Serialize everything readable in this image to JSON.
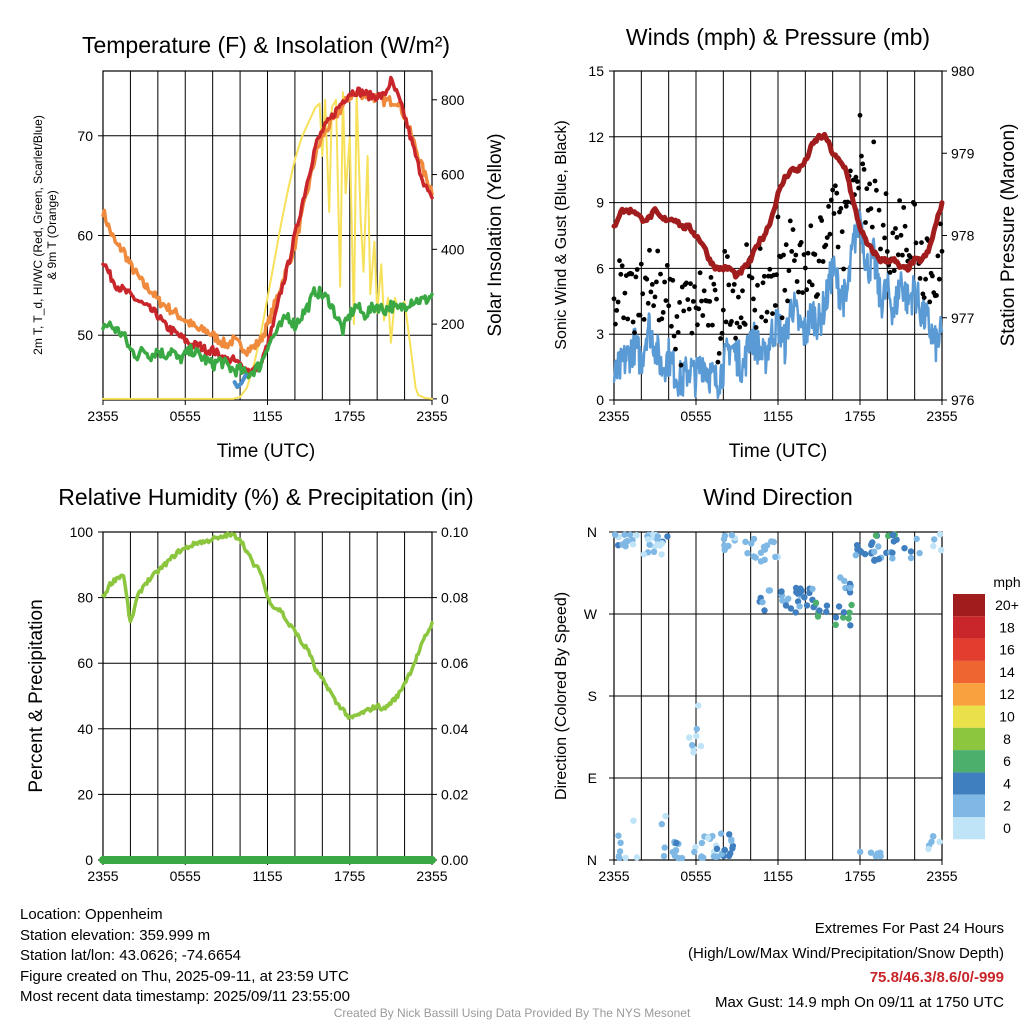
{
  "panels": {
    "temperature": {
      "title": "Temperature (F) & Insolation (W/m²)",
      "ylabel_left_line1": "2m T, T_d, HI/WC (Red, Green, Scarlet/Blue)",
      "ylabel_left_line2": "& 9m T (Orange)",
      "ylabel_right": "Solar Insolation (Yellow)",
      "xlabel": "Time (UTC)"
    },
    "winds": {
      "title": "Winds (mph) & Pressure (mb)",
      "ylabel_left": "Sonic Wind & Gust (Blue, Black)",
      "ylabel_right": "Station Pressure (Maroon)",
      "xlabel": "Time (UTC)"
    },
    "humidity": {
      "title": "Relative Humidity (%) & Precipitation (in)",
      "ylabel_left": "Percent & Precipitation"
    },
    "direction": {
      "title": "Wind Direction",
      "ylabel_left": "Direction (Colored By Speed)",
      "legend_title": "mph"
    }
  },
  "info": {
    "location": "Location: Oppenheim",
    "elevation": "Station elevation: 359.999 m",
    "latlon": "Station lat/lon: 43.0626; -74.6654",
    "created": "Figure created on Thu, 2025-09-11, at 23:59 UTC",
    "recent": "Most recent data timestamp: 2025/09/11 23:55:00"
  },
  "extremes": {
    "heading": "Extremes For Past 24 Hours",
    "legend": "(High/Low/Max Wind/Precipitation/Snow Depth)",
    "values": "75.8/46.3/8.6/0/-999",
    "max_gust": "Max Gust: 14.9 mph On 09/11 at 1750 UTC"
  },
  "credit": "Created By Nick Bassill Using Data Provided By The NYS Mesonet",
  "colors": {
    "temp": "#c8262b",
    "temp9m": "#f08a3c",
    "dewpoint": "#3aa843",
    "windchill": "#4a90cc",
    "solar": "#f7e15a",
    "wind": "#5b9bd5",
    "gust": "#000000",
    "pressure": "#a11d1d",
    "rh": "#8cc63f",
    "precip": "#3aa843"
  },
  "chart_data": [
    {
      "type": "line",
      "panel": "temperature",
      "x_ticks": [
        "2355",
        "0555",
        "1155",
        "1755",
        "2355"
      ],
      "x_hours": [
        0,
        6,
        12,
        18,
        24
      ],
      "y_left_ticks": [
        50,
        60,
        70
      ],
      "ylim_left": [
        43.5,
        76.5
      ],
      "y_right_ticks": [
        0,
        200,
        400,
        600,
        800
      ],
      "ylim_right": [
        -3,
        877
      ],
      "grid": true,
      "series": [
        {
          "key": "temp9m",
          "axis": "left",
          "x": [
            0,
            0.5,
            1,
            1.5,
            2,
            2.5,
            3,
            3.5,
            4,
            4.5,
            5,
            5.5,
            6,
            6.5,
            7,
            7.5,
            8,
            8.5,
            9,
            9.5,
            10,
            10.5,
            11,
            11.5,
            12,
            12.5,
            13,
            13.5,
            14,
            14.5,
            15,
            15.5,
            16,
            16.5,
            17,
            17.5,
            18,
            18.5,
            19,
            19.5,
            20,
            20.5,
            21,
            21.5,
            22,
            22.5,
            23,
            23.5,
            24
          ],
          "y": [
            62.5,
            60.5,
            59,
            58.5,
            57,
            56,
            55,
            54.5,
            53.5,
            53,
            52.5,
            52,
            51.5,
            51,
            50.5,
            50.5,
            50,
            49.5,
            49,
            49.5,
            49,
            48.5,
            48.8,
            49.5,
            51,
            53,
            55,
            57,
            59,
            62,
            65,
            68,
            70,
            71,
            72,
            73,
            74,
            74.3,
            74.2,
            74,
            73.8,
            73.5,
            73.5,
            73.5,
            72,
            70,
            68,
            66,
            64.5
          ]
        },
        {
          "key": "temp",
          "axis": "left",
          "x": [
            0,
            0.5,
            1,
            1.5,
            2,
            2.5,
            3,
            3.5,
            4,
            4.5,
            5,
            5.5,
            6,
            6.5,
            7,
            7.5,
            8,
            8.5,
            9,
            9.5,
            10,
            10.5,
            11,
            11.5,
            12,
            12.5,
            13,
            13.5,
            14,
            14.5,
            15,
            15.5,
            16,
            16.5,
            17,
            17.5,
            18,
            18.5,
            19,
            19.5,
            20,
            20.5,
            21,
            21.5,
            22,
            22.5,
            23,
            23.5,
            24
          ],
          "y": [
            57.5,
            56,
            55,
            54.5,
            54,
            53.5,
            53,
            52.5,
            52,
            51,
            50.5,
            50,
            49.5,
            49,
            49,
            48.5,
            48.5,
            48,
            47.5,
            47.5,
            47,
            46.5,
            46.5,
            47,
            49,
            51.5,
            54.5,
            57,
            60,
            63,
            66,
            69,
            70.5,
            71.5,
            72.5,
            73.5,
            74.3,
            74.5,
            74.3,
            74,
            74,
            74,
            75.5,
            74,
            72,
            69.5,
            67,
            65,
            63.5
          ]
        },
        {
          "key": "dewpoint",
          "axis": "left",
          "x": [
            0,
            0.5,
            1,
            1.5,
            2,
            2.5,
            3,
            3.5,
            4,
            4.5,
            5,
            5.5,
            6,
            6.5,
            7,
            7.5,
            8,
            8.5,
            9,
            9.5,
            10,
            10.5,
            11,
            11.5,
            12,
            12.5,
            13,
            13.5,
            14,
            14.5,
            15,
            15.5,
            16,
            16.5,
            17,
            17.5,
            18,
            18.5,
            19,
            19.5,
            20,
            20.5,
            21,
            21.5,
            22,
            22.5,
            23,
            23.5,
            24
          ],
          "y": [
            51,
            51,
            50.5,
            50,
            48.5,
            48,
            48.5,
            48,
            48.5,
            48,
            48.5,
            47.5,
            48,
            48.5,
            48,
            47.5,
            47,
            47.5,
            47,
            46.5,
            46.5,
            46,
            46.5,
            47,
            49,
            50,
            51,
            52,
            51,
            52,
            53,
            54.5,
            54,
            53.5,
            52,
            50.5,
            52,
            53,
            52,
            52.5,
            53,
            52.5,
            53,
            52.5,
            53,
            53.5,
            53.5,
            53.5,
            54
          ]
        },
        {
          "key": "windchill",
          "axis": "left",
          "x": [
            9.6,
            9.8,
            10.1,
            10.4
          ],
          "y": [
            45.3,
            44.8,
            45.2,
            46
          ]
        },
        {
          "key": "solar",
          "axis": "right",
          "x": [
            0,
            9.5,
            10,
            10.5,
            11,
            11.5,
            12,
            12.5,
            13,
            13.5,
            14,
            14.5,
            15,
            15.5,
            15.8,
            16,
            16.2,
            16.5,
            16.7,
            17,
            17.3,
            17.5,
            17.7,
            18,
            18.3,
            18.5,
            18.8,
            19,
            19.3,
            19.5,
            19.8,
            20,
            20.3,
            20.5,
            20.8,
            21,
            21.3,
            21.5,
            22,
            22.5,
            22.8,
            23,
            23.5,
            24
          ],
          "y": [
            0,
            0,
            5,
            30,
            90,
            170,
            270,
            370,
            470,
            560,
            640,
            700,
            740,
            780,
            790,
            650,
            800,
            500,
            780,
            800,
            300,
            820,
            550,
            700,
            200,
            820,
            480,
            340,
            650,
            280,
            420,
            230,
            360,
            210,
            270,
            150,
            270,
            240,
            260,
            120,
            30,
            10,
            2,
            0
          ]
        }
      ]
    },
    {
      "type": "line",
      "panel": "winds",
      "x_ticks": [
        "2355",
        "0555",
        "1155",
        "1755",
        "2355"
      ],
      "x_hours": [
        0,
        6,
        12,
        18,
        24
      ],
      "y_left_ticks": [
        0,
        3,
        6,
        9,
        12,
        15
      ],
      "ylim_left": [
        0,
        15
      ],
      "y_right_ticks": [
        976,
        977,
        978,
        979,
        980
      ],
      "ylim_right": [
        976,
        980
      ],
      "grid": true,
      "series": [
        {
          "key": "wind",
          "axis": "left",
          "x": [
            0,
            0.5,
            1,
            1.5,
            2,
            2.5,
            3,
            3.5,
            4,
            4.5,
            5,
            5.5,
            6,
            6.5,
            7,
            7.5,
            8,
            8.5,
            9,
            9.5,
            10,
            10.5,
            11,
            11.5,
            12,
            12.5,
            13,
            13.5,
            14,
            14.5,
            15,
            15.5,
            16,
            16.5,
            17,
            17.5,
            18,
            18.5,
            19,
            19.5,
            20,
            20.5,
            21,
            21.5,
            22,
            22.5,
            23,
            23.5,
            24
          ],
          "y": [
            1,
            1.5,
            2,
            2.5,
            1.8,
            3.5,
            2.5,
            1.5,
            2,
            1.2,
            0.8,
            1.5,
            1,
            1.8,
            1.2,
            0.8,
            1.5,
            2.5,
            2,
            1.5,
            3,
            2.5,
            1.8,
            3,
            3.5,
            2.5,
            4.5,
            3.5,
            3,
            4,
            3.5,
            4.5,
            6,
            5,
            4.5,
            7,
            8.5,
            6,
            6.5,
            4.5,
            5,
            4,
            5.5,
            4.5,
            5,
            4,
            3.5,
            2.5,
            3
          ]
        },
        {
          "key": "pressure",
          "axis": "right",
          "x": [
            0,
            0.5,
            1,
            1.5,
            2,
            2.5,
            3,
            3.5,
            4,
            4.5,
            5,
            5.5,
            6,
            6.5,
            7,
            7.5,
            8,
            8.5,
            9,
            9.5,
            10,
            10.5,
            11,
            11.5,
            12,
            12.5,
            13,
            13.5,
            14,
            14.5,
            15,
            15.5,
            16,
            16.5,
            17,
            17.5,
            18,
            18.5,
            19,
            19.5,
            20,
            20.5,
            21,
            21.5,
            22,
            22.5,
            23,
            23.5,
            24
          ],
          "y": [
            978.1,
            978.3,
            978.3,
            978.3,
            978.2,
            978.2,
            978.3,
            978.2,
            978.2,
            978.2,
            978.1,
            978.1,
            978.0,
            977.9,
            977.7,
            977.6,
            977.6,
            977.6,
            977.5,
            977.6,
            977.7,
            977.9,
            978.0,
            978.2,
            978.5,
            978.7,
            978.8,
            978.8,
            978.9,
            979.1,
            979.2,
            979.2,
            979.0,
            978.9,
            978.8,
            978.4,
            978.1,
            977.9,
            977.8,
            977.7,
            977.7,
            977.7,
            977.6,
            977.6,
            977.7,
            977.7,
            977.8,
            978.1,
            978.4
          ]
        }
      ]
    },
    {
      "type": "line",
      "panel": "humidity",
      "x_ticks": [
        "2355",
        "0555",
        "1155",
        "1755",
        "2355"
      ],
      "x_hours": [
        0,
        6,
        12,
        18,
        24
      ],
      "y_left_ticks": [
        0,
        20,
        40,
        60,
        80,
        100
      ],
      "ylim_left": [
        0,
        100
      ],
      "y_right_ticks": [
        "0.00",
        "0.02",
        "0.04",
        "0.06",
        "0.08",
        "0.10"
      ],
      "ylim_right": [
        0,
        0.1
      ],
      "grid": true,
      "series": [
        {
          "key": "rh",
          "axis": "left",
          "x": [
            0,
            0.5,
            1,
            1.5,
            2,
            2.5,
            3,
            3.5,
            4,
            4.5,
            5,
            5.5,
            6,
            6.5,
            7,
            7.5,
            8,
            8.5,
            9,
            9.5,
            10,
            10.5,
            11,
            11.5,
            12,
            12.5,
            13,
            13.5,
            14,
            14.5,
            15,
            15.5,
            16,
            16.5,
            17,
            17.5,
            18,
            18.5,
            19,
            19.5,
            20,
            20.5,
            21,
            21.5,
            22,
            22.5,
            23,
            23.5,
            24
          ],
          "y": [
            80,
            84,
            86,
            87,
            72,
            80,
            84,
            86,
            88,
            90,
            92,
            94,
            95,
            96,
            97,
            97,
            98,
            98,
            99,
            99,
            98,
            94,
            90,
            88,
            80,
            77,
            76,
            72,
            70,
            66,
            64,
            58,
            55,
            52,
            48,
            46,
            43,
            44,
            45,
            46,
            47,
            46,
            48,
            50,
            54,
            58,
            63,
            68,
            72
          ]
        },
        {
          "key": "precip",
          "axis": "right",
          "x": [
            0,
            24
          ],
          "y": [
            0,
            0
          ]
        }
      ]
    },
    {
      "type": "scatter",
      "panel": "direction",
      "x_ticks": [
        "2355",
        "0555",
        "1155",
        "1755",
        "2355"
      ],
      "x_hours": [
        0,
        6,
        12,
        18,
        24
      ],
      "y_ticks": [
        "N",
        "E",
        "S",
        "W",
        "N"
      ],
      "y_degrees": [
        0,
        90,
        180,
        270,
        360
      ],
      "ylim": [
        0,
        360
      ],
      "grid": true,
      "legend": {
        "title": "mph",
        "labels": [
          "20+",
          "18",
          "16",
          "14",
          "12",
          "10",
          "8",
          "6",
          "4",
          "2",
          "0"
        ],
        "colors": [
          "#a11d1d",
          "#c8262b",
          "#e23d2e",
          "#ef6531",
          "#f9a03f",
          "#e9e04a",
          "#8cc63f",
          "#4caf6b",
          "#3f7fbf",
          "#7fb8e4",
          "#bfe3f7"
        ]
      }
    }
  ]
}
